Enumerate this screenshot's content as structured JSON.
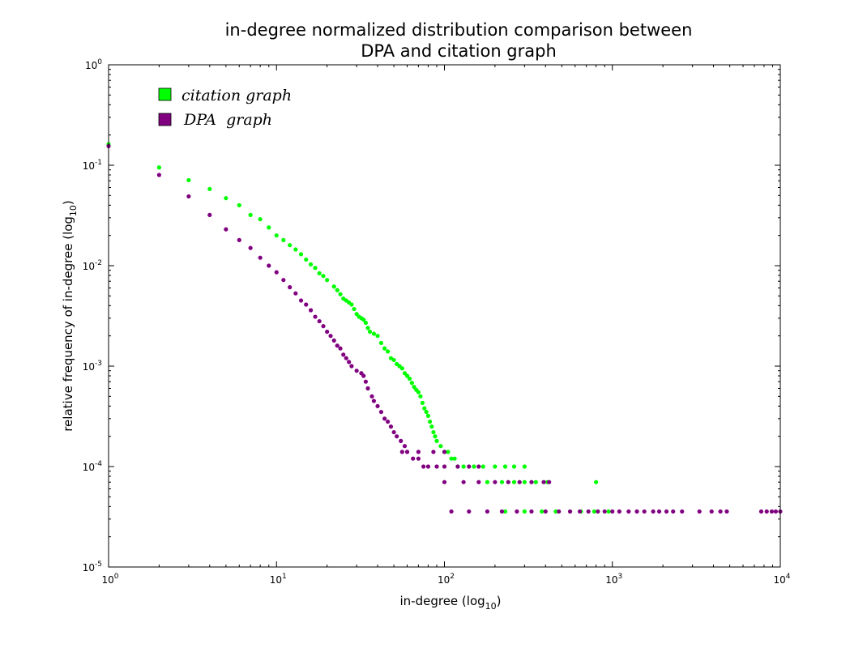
{
  "chart_data": {
    "type": "scatter",
    "title": [
      "in-degree normalized distribution comparison between",
      "DPA and citation graph"
    ],
    "xlabel": {
      "text": "in-degree   (log",
      "sub": "10",
      "close": ")"
    },
    "ylabel": {
      "text": "relative frequency of in-degree   (log",
      "sub": "10",
      "close": ")"
    },
    "x_scale": "log",
    "y_scale": "log",
    "xlim": [
      1,
      10000
    ],
    "ylim": [
      1e-05,
      1
    ],
    "x_ticks": [
      {
        "base": "10",
        "exp": "0"
      },
      {
        "base": "10",
        "exp": "1"
      },
      {
        "base": "10",
        "exp": "2"
      },
      {
        "base": "10",
        "exp": "3"
      },
      {
        "base": "10",
        "exp": "4"
      }
    ],
    "y_ticks": [
      {
        "base": "10",
        "exp": "-5"
      },
      {
        "base": "10",
        "exp": "-4"
      },
      {
        "base": "10",
        "exp": "-3"
      },
      {
        "base": "10",
        "exp": "-2"
      },
      {
        "base": "10",
        "exp": "-1"
      },
      {
        "base": "10",
        "exp": "0"
      }
    ],
    "grid": false,
    "legend_position": "top-left",
    "series": [
      {
        "name": "citation graph",
        "color": "#00ff00",
        "points": [
          [
            1,
            0.162
          ],
          [
            2,
            0.095
          ],
          [
            3,
            0.071
          ],
          [
            4,
            0.058
          ],
          [
            5,
            0.047
          ],
          [
            6,
            0.04
          ],
          [
            7,
            0.032
          ],
          [
            8,
            0.029
          ],
          [
            9,
            0.024
          ],
          [
            10,
            0.02
          ],
          [
            11,
            0.018
          ],
          [
            12,
            0.016
          ],
          [
            13,
            0.0145
          ],
          [
            14,
            0.013
          ],
          [
            15,
            0.0115
          ],
          [
            16,
            0.0103
          ],
          [
            17,
            0.0095
          ],
          [
            18,
            0.0084
          ],
          [
            19,
            0.0079
          ],
          [
            20,
            0.0072
          ],
          [
            22,
            0.0062
          ],
          [
            23,
            0.0057
          ],
          [
            24,
            0.0052
          ],
          [
            25,
            0.0047
          ],
          [
            26,
            0.0045
          ],
          [
            27,
            0.0043
          ],
          [
            28,
            0.0041
          ],
          [
            29,
            0.0037
          ],
          [
            30,
            0.0033
          ],
          [
            31,
            0.0031
          ],
          [
            32,
            0.003
          ],
          [
            33,
            0.0029
          ],
          [
            34,
            0.0027
          ],
          [
            35,
            0.0024
          ],
          [
            36,
            0.0022
          ],
          [
            38,
            0.0021
          ],
          [
            40,
            0.002
          ],
          [
            42,
            0.0017
          ],
          [
            44,
            0.0015
          ],
          [
            46,
            0.0014
          ],
          [
            48,
            0.0012
          ],
          [
            50,
            0.00115
          ],
          [
            52,
            0.00105
          ],
          [
            54,
            0.001
          ],
          [
            56,
            0.00095
          ],
          [
            58,
            0.00085
          ],
          [
            60,
            0.0008
          ],
          [
            62,
            0.00075
          ],
          [
            64,
            0.00068
          ],
          [
            66,
            0.00062
          ],
          [
            68,
            0.00058
          ],
          [
            70,
            0.00055
          ],
          [
            72,
            0.0005
          ],
          [
            74,
            0.00043
          ],
          [
            76,
            0.00038
          ],
          [
            78,
            0.00035
          ],
          [
            80,
            0.00032
          ],
          [
            82,
            0.00028
          ],
          [
            84,
            0.00025
          ],
          [
            86,
            0.00022
          ],
          [
            88,
            0.0002
          ],
          [
            90,
            0.00018
          ],
          [
            95,
            0.00016
          ],
          [
            100,
            0.00014
          ],
          [
            105,
            0.00014
          ],
          [
            110,
            0.00012
          ],
          [
            115,
            0.00012
          ],
          [
            120,
            0.0001
          ],
          [
            130,
            0.0001
          ],
          [
            150,
            0.0001
          ],
          [
            170,
            0.0001
          ],
          [
            200,
            0.0001
          ],
          [
            230,
            0.0001
          ],
          [
            260,
            0.0001
          ],
          [
            300,
            0.0001
          ],
          [
            180,
            7e-05
          ],
          [
            220,
            7e-05
          ],
          [
            260,
            7e-05
          ],
          [
            300,
            7e-05
          ],
          [
            350,
            7e-05
          ],
          [
            410,
            7e-05
          ],
          [
            800,
            7e-05
          ],
          [
            230,
            3.57e-05
          ],
          [
            300,
            3.57e-05
          ],
          [
            380,
            3.57e-05
          ],
          [
            460,
            3.57e-05
          ],
          [
            560,
            3.57e-05
          ],
          [
            650,
            3.57e-05
          ],
          [
            780,
            3.57e-05
          ],
          [
            950,
            3.57e-05
          ]
        ]
      },
      {
        "name": "DPA  graph",
        "color": "#800080",
        "points": [
          [
            1,
            0.155
          ],
          [
            2,
            0.08
          ],
          [
            3,
            0.049
          ],
          [
            4,
            0.032
          ],
          [
            5,
            0.023
          ],
          [
            6,
            0.018
          ],
          [
            7,
            0.015
          ],
          [
            8,
            0.012
          ],
          [
            9,
            0.01
          ],
          [
            10,
            0.0086
          ],
          [
            11,
            0.0072
          ],
          [
            12,
            0.0061
          ],
          [
            13,
            0.0053
          ],
          [
            14,
            0.0045
          ],
          [
            15,
            0.0041
          ],
          [
            16,
            0.0036
          ],
          [
            17,
            0.0031
          ],
          [
            18,
            0.0028
          ],
          [
            19,
            0.0025
          ],
          [
            20,
            0.0022
          ],
          [
            21,
            0.002
          ],
          [
            22,
            0.0018
          ],
          [
            23,
            0.0016
          ],
          [
            24,
            0.0015
          ],
          [
            25,
            0.0013
          ],
          [
            26,
            0.0012
          ],
          [
            27,
            0.0011
          ],
          [
            28,
            0.001
          ],
          [
            30,
            0.0009
          ],
          [
            32,
            0.00085
          ],
          [
            33,
            0.0008
          ],
          [
            34,
            0.0007
          ],
          [
            35,
            0.0006
          ],
          [
            37,
            0.0005
          ],
          [
            38,
            0.00045
          ],
          [
            40,
            0.0004
          ],
          [
            42,
            0.00035
          ],
          [
            44,
            0.0003
          ],
          [
            46,
            0.00028
          ],
          [
            48,
            0.00025
          ],
          [
            50,
            0.00022
          ],
          [
            52,
            0.0002
          ],
          [
            55,
            0.00018
          ],
          [
            58,
            0.00016
          ],
          [
            60,
            0.00014
          ],
          [
            65,
            0.00012
          ],
          [
            70,
            0.00012
          ],
          [
            75,
            0.0001
          ],
          [
            80,
            0.0001
          ],
          [
            90,
            0.0001
          ],
          [
            100,
            0.0001
          ],
          [
            56,
            0.00014
          ],
          [
            70,
            0.00014
          ],
          [
            86,
            0.00014
          ],
          [
            100,
            0.00014
          ],
          [
            120,
            0.0001
          ],
          [
            140,
            0.0001
          ],
          [
            160,
            0.0001
          ],
          [
            100,
            7e-05
          ],
          [
            130,
            7e-05
          ],
          [
            160,
            7e-05
          ],
          [
            200,
            7e-05
          ],
          [
            240,
            7e-05
          ],
          [
            280,
            7e-05
          ],
          [
            330,
            7e-05
          ],
          [
            390,
            7e-05
          ],
          [
            420,
            7e-05
          ],
          [
            110,
            3.57e-05
          ],
          [
            140,
            3.57e-05
          ],
          [
            180,
            3.57e-05
          ],
          [
            220,
            3.57e-05
          ],
          [
            270,
            3.57e-05
          ],
          [
            330,
            3.57e-05
          ],
          [
            400,
            3.57e-05
          ],
          [
            480,
            3.57e-05
          ],
          [
            560,
            3.57e-05
          ],
          [
            640,
            3.57e-05
          ],
          [
            720,
            3.57e-05
          ],
          [
            820,
            3.57e-05
          ],
          [
            900,
            3.57e-05
          ],
          [
            1000,
            3.57e-05
          ],
          [
            1100,
            3.57e-05
          ],
          [
            1250,
            3.57e-05
          ],
          [
            1400,
            3.57e-05
          ],
          [
            1550,
            3.57e-05
          ],
          [
            1750,
            3.57e-05
          ],
          [
            1900,
            3.57e-05
          ],
          [
            2100,
            3.57e-05
          ],
          [
            2300,
            3.57e-05
          ],
          [
            2600,
            3.57e-05
          ],
          [
            3300,
            3.57e-05
          ],
          [
            3900,
            3.57e-05
          ],
          [
            4400,
            3.57e-05
          ],
          [
            4800,
            3.57e-05
          ],
          [
            7700,
            3.57e-05
          ],
          [
            8300,
            3.57e-05
          ],
          [
            8900,
            3.57e-05
          ],
          [
            9400,
            3.57e-05
          ],
          [
            10000,
            3.57e-05
          ]
        ]
      }
    ]
  }
}
